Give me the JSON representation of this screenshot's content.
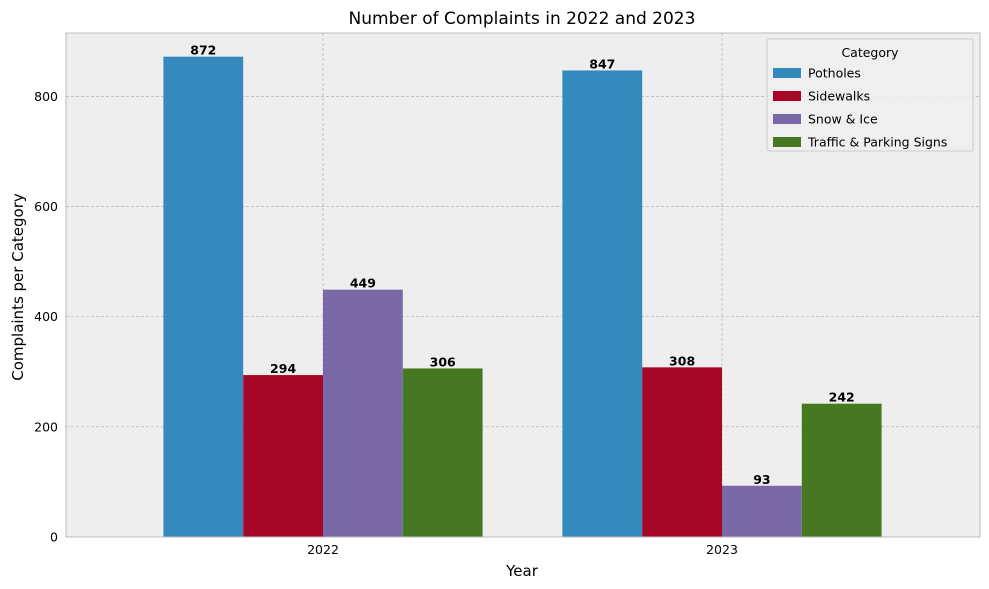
{
  "chart_data": {
    "type": "bar",
    "title": "Number of Complaints in 2022 and 2023",
    "xlabel": "Year",
    "ylabel": "Complaints per Category",
    "categories": [
      "2022",
      "2023"
    ],
    "series": [
      {
        "name": "Potholes",
        "values": [
          872,
          847
        ],
        "color": "#348abd"
      },
      {
        "name": "Sidewalks",
        "values": [
          294,
          308
        ],
        "color": "#a60628"
      },
      {
        "name": "Snow & Ice",
        "values": [
          449,
          93
        ],
        "color": "#7a68a6"
      },
      {
        "name": "Traffic & Parking Signs",
        "values": [
          306,
          242
        ],
        "color": "#467821"
      }
    ],
    "ylim": [
      0,
      915
    ],
    "yticks": [
      0,
      200,
      400,
      600,
      800
    ],
    "grid": true,
    "legend": {
      "title": "Category",
      "placement": "top-right"
    },
    "background": "#eeeeee"
  }
}
